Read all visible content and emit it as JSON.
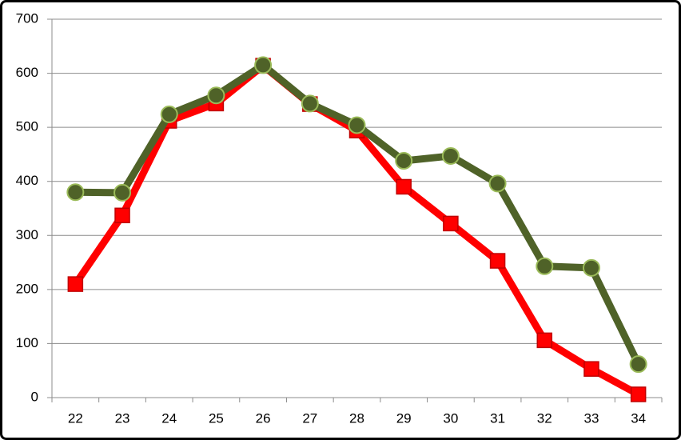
{
  "chart_data": {
    "type": "line",
    "categories": [
      22,
      23,
      24,
      25,
      26,
      27,
      28,
      29,
      30,
      31,
      32,
      33,
      34
    ],
    "series": [
      {
        "color": "#ff0000",
        "marker": "square",
        "marker_edge": "#c00000",
        "values": [
          210,
          337,
          512,
          544,
          614,
          543,
          494,
          390,
          322,
          253,
          106,
          53,
          6
        ]
      },
      {
        "color": "#4f6228",
        "marker": "circle",
        "marker_edge": "#9bbb59",
        "values": [
          380,
          379,
          524,
          559,
          615,
          544,
          504,
          438,
          447,
          396,
          243,
          240,
          62
        ]
      }
    ],
    "ylim": [
      0,
      700
    ],
    "yticks": [
      0,
      100,
      200,
      300,
      400,
      500,
      600,
      700
    ],
    "grid": true
  }
}
